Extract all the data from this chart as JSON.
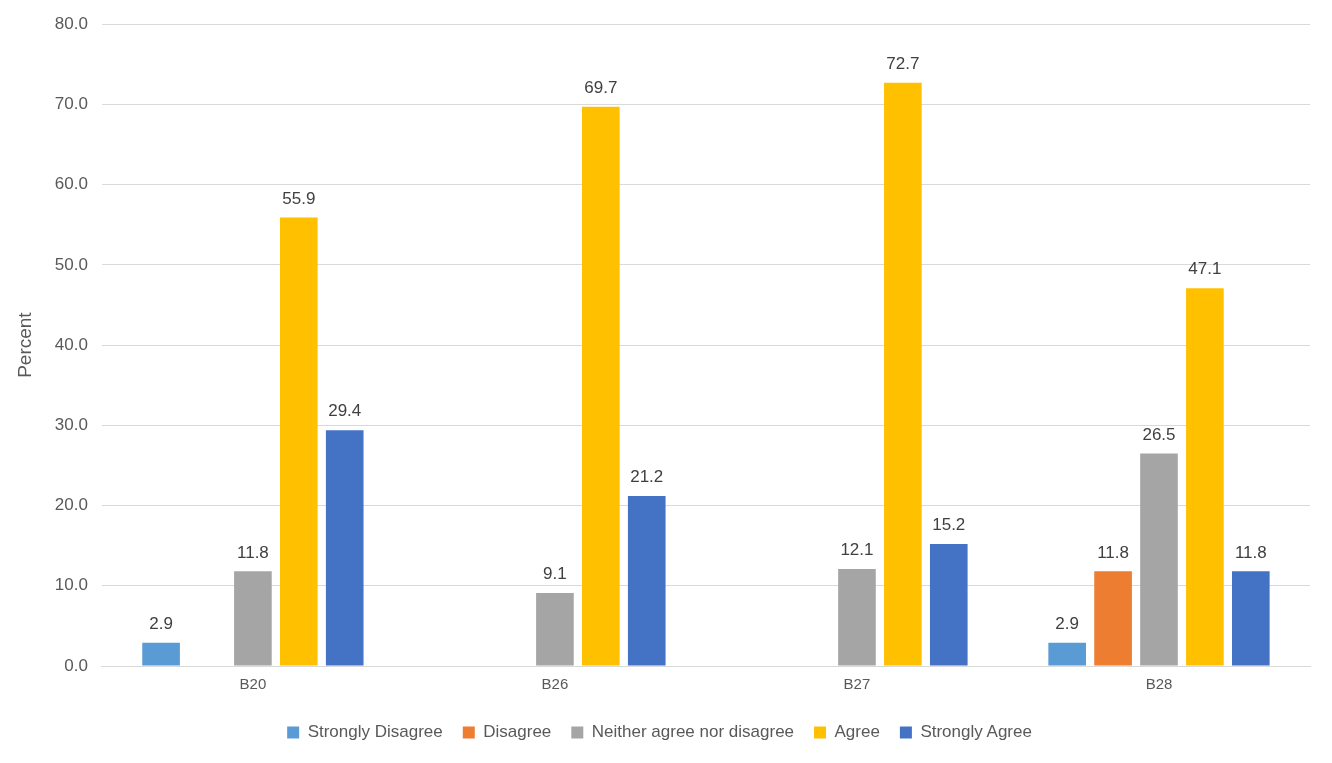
{
  "chart_data": {
    "type": "bar",
    "ylabel": "Percent",
    "categories": [
      "B20",
      "B26",
      "B27",
      "B28"
    ],
    "series": [
      {
        "name": "Strongly Disagree",
        "color": "#5b9bd5",
        "values": [
          2.9,
          null,
          null,
          2.9
        ]
      },
      {
        "name": "Disagree",
        "color": "#ed7d31",
        "values": [
          null,
          null,
          null,
          11.8
        ]
      },
      {
        "name": "Neither agree nor disagree",
        "color": "#a5a5a5",
        "values": [
          11.8,
          9.1,
          12.1,
          26.5
        ]
      },
      {
        "name": "Agree",
        "color": "#ffc000",
        "values": [
          55.9,
          69.7,
          72.7,
          47.1
        ]
      },
      {
        "name": "Strongly Agree",
        "color": "#4472c4",
        "values": [
          29.4,
          21.2,
          15.2,
          11.8
        ]
      }
    ],
    "ylim": [
      0,
      80
    ],
    "yticks": [
      {
        "value": 0,
        "label": "0.0"
      },
      {
        "value": 10,
        "label": "10.0"
      },
      {
        "value": 20,
        "label": "20.0"
      },
      {
        "value": 30,
        "label": "30.0"
      },
      {
        "value": 40,
        "label": "40.0"
      },
      {
        "value": 50,
        "label": "50.0"
      },
      {
        "value": 60,
        "label": "60.0"
      },
      {
        "value": 70,
        "label": "70.0"
      },
      {
        "value": 80,
        "label": "80.0"
      }
    ],
    "grid": "y",
    "legend": "bottom",
    "data_labels": true
  }
}
